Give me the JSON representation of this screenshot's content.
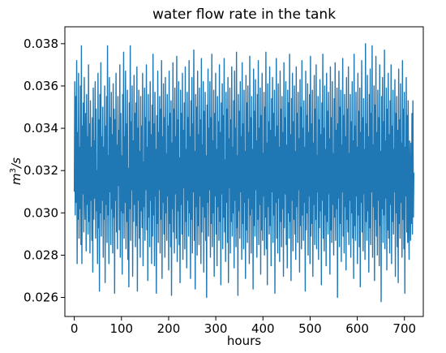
{
  "chart_data": {
    "type": "line",
    "title": "water flow rate in the tank",
    "xlabel": "hours",
    "ylabel_base": "m",
    "ylabel_sup": "3",
    "ylabel_tail": "/s",
    "xlim": [
      -20,
      740
    ],
    "ylim": [
      0.0251,
      0.0388
    ],
    "xticks": [
      0,
      100,
      200,
      300,
      400,
      500,
      600,
      700
    ],
    "xtick_labels": [
      "0",
      "100",
      "200",
      "300",
      "400",
      "500",
      "600",
      "700"
    ],
    "yticks": [
      0.026,
      0.028,
      0.03,
      0.032,
      0.034,
      0.036,
      0.038
    ],
    "ytick_labels": [
      "0.026",
      "0.028",
      "0.030",
      "0.032",
      "0.034",
      "0.036",
      "0.038"
    ],
    "grid": false,
    "legend": "none",
    "line_color": "#1f77b4",
    "series": [
      {
        "values": [
          0.031,
          0.0362,
          0.0299,
          0.0355,
          0.0305,
          0.0372,
          0.0276,
          0.0338,
          0.0297,
          0.0366,
          0.0288,
          0.0331,
          0.0302,
          0.036,
          0.0285,
          0.0379,
          0.0276,
          0.0341,
          0.0309,
          0.0352,
          0.0291,
          0.0364,
          0.0318,
          0.0297,
          0.0347,
          0.0282,
          0.0356,
          0.0304,
          0.0336,
          0.029,
          0.037,
          0.0296,
          0.0342,
          0.0281,
          0.0353,
          0.0306,
          0.0331,
          0.0287,
          0.0345,
          0.0272,
          0.0359,
          0.0297,
          0.0334,
          0.0307,
          0.0362,
          0.0288,
          0.0349,
          0.0301,
          0.032,
          0.0276,
          0.0366,
          0.0293,
          0.0344,
          0.0263,
          0.0356,
          0.03,
          0.0371,
          0.0289,
          0.0336,
          0.0306,
          0.035,
          0.0279,
          0.0331,
          0.0297,
          0.036,
          0.0267,
          0.0341,
          0.0304,
          0.0355,
          0.0286,
          0.0379,
          0.0299,
          0.0327,
          0.0276,
          0.0364,
          0.031,
          0.0345,
          0.0285,
          0.0357,
          0.0302,
          0.0337,
          0.0281,
          0.0361,
          0.0298,
          0.0349,
          0.0262,
          0.0344,
          0.0306,
          0.0366,
          0.0291,
          0.0332,
          0.0283,
          0.0355,
          0.0313,
          0.0339,
          0.0292,
          0.037,
          0.0279,
          0.0347,
          0.0301,
          0.0327,
          0.0271,
          0.0356,
          0.03,
          0.0376,
          0.0288,
          0.0336,
          0.0305,
          0.0367,
          0.0283,
          0.0342,
          0.0296,
          0.0358,
          0.0278,
          0.0321,
          0.0265,
          0.0352,
          0.0302,
          0.0379,
          0.0287,
          0.0343,
          0.0311,
          0.036,
          0.027,
          0.0334,
          0.0296,
          0.0365,
          0.0304,
          0.0347,
          0.0284,
          0.0352,
          0.0294,
          0.0369,
          0.0263,
          0.034,
          0.0306,
          0.0358,
          0.0288,
          0.0329,
          0.0279,
          0.0355,
          0.0301,
          0.0341,
          0.0293,
          0.0366,
          0.0275,
          0.0324,
          0.0303,
          0.0359,
          0.0287,
          0.0345,
          0.0311,
          0.037,
          0.0292,
          0.0331,
          0.0268,
          0.0356,
          0.0298,
          0.0343,
          0.0284,
          0.0362,
          0.0306,
          0.0337,
          0.0276,
          0.0351,
          0.0289,
          0.0375,
          0.0299,
          0.0342,
          0.0275,
          0.0357,
          0.0308,
          0.033,
          0.0262,
          0.0346,
          0.0295,
          0.0367,
          0.0286,
          0.0338,
          0.0311,
          0.0355,
          0.0281,
          0.0349,
          0.0297,
          0.0372,
          0.0269,
          0.0336,
          0.0305,
          0.0361,
          0.029,
          0.0345,
          0.0279,
          0.0364,
          0.03,
          0.0328,
          0.0287,
          0.0356,
          0.0308,
          0.0341,
          0.0273,
          0.0367,
          0.0295,
          0.0347,
          0.0284,
          0.0353,
          0.0261,
          0.0333,
          0.0302,
          0.0371,
          0.0291,
          0.0349,
          0.0281,
          0.0359,
          0.0309,
          0.0336,
          0.0288,
          0.0374,
          0.0277,
          0.0344,
          0.0301,
          0.0362,
          0.0285,
          0.0326,
          0.0267,
          0.0358,
          0.0304,
          0.0347,
          0.029,
          0.0366,
          0.0278,
          0.0339,
          0.0312,
          0.0352,
          0.0283,
          0.0369,
          0.0296,
          0.033,
          0.0274,
          0.0357,
          0.0306,
          0.0345,
          0.0289,
          0.0372,
          0.03,
          0.0336,
          0.0269,
          0.0353,
          0.0297,
          0.0364,
          0.0281,
          0.0342,
          0.031,
          0.0377,
          0.0287,
          0.0329,
          0.0264,
          0.0356,
          0.0303,
          0.035,
          0.028,
          0.0367,
          0.0294,
          0.0337,
          0.0285,
          0.0359,
          0.0308,
          0.0344,
          0.0276,
          0.0373,
          0.0291,
          0.0332,
          0.0303,
          0.0362,
          0.0272,
          0.0348,
          0.0298,
          0.0357,
          0.0287,
          0.0327,
          0.026,
          0.0351,
          0.0305,
          0.0368,
          0.0289,
          0.034,
          0.0311,
          0.0362,
          0.0279,
          0.0345,
          0.0295,
          0.0375,
          0.0284,
          0.0334,
          0.03,
          0.0358,
          0.027,
          0.0347,
          0.0308,
          0.0366,
          0.029,
          0.033,
          0.0275,
          0.0355,
          0.0303,
          0.0343,
          0.0287,
          0.037,
          0.0296,
          0.0338,
          0.0266,
          0.0352,
          0.0309,
          0.0361,
          0.0283,
          0.0346,
          0.0298,
          0.0373,
          0.0291,
          0.0325,
          0.0277,
          0.0357,
          0.0305,
          0.0349,
          0.0286,
          0.0364,
          0.0267,
          0.0335,
          0.0312,
          0.0359,
          0.0281,
          0.0344,
          0.0296,
          0.0369,
          0.0289,
          0.0331,
          0.03,
          0.0353,
          0.0274,
          0.0367,
          0.0306,
          0.034,
          0.0284,
          0.0376,
          0.0293,
          0.0327,
          0.0261,
          0.0356,
          0.0301,
          0.0348,
          0.0288,
          0.0362,
          0.031,
          0.0336,
          0.0278,
          0.0371,
          0.0295,
          0.0342,
          0.0283,
          0.0358,
          0.0305,
          0.0329,
          0.0269,
          0.0365,
          0.0292,
          0.0352,
          0.0286,
          0.036,
          0.0307,
          0.0338,
          0.0276,
          0.0374,
          0.0299,
          0.0345,
          0.0281,
          0.0355,
          0.0302,
          0.033,
          0.0264,
          0.0368,
          0.0294,
          0.0348,
          0.0289,
          0.0363,
          0.0311,
          0.0334,
          0.0279,
          0.0356,
          0.0297,
          0.0372,
          0.0285,
          0.034,
          0.0304,
          0.0359,
          0.0271,
          0.0346,
          0.0292,
          0.0366,
          0.0287,
          0.0328,
          0.0308,
          0.0357,
          0.028,
          0.035,
          0.0298,
          0.0376,
          0.0283,
          0.0333,
          0.0266,
          0.0361,
          0.0303,
          0.0343,
          0.029,
          0.0369,
          0.0294,
          0.0339,
          0.0275,
          0.0354,
          0.031,
          0.0364,
          0.0286,
          0.0347,
          0.0299,
          0.0358,
          0.0262,
          0.0336,
          0.0305,
          0.0373,
          0.0288,
          0.0341,
          0.0281,
          0.0361,
          0.0307,
          0.0331,
          0.0277,
          0.0367,
          0.0296,
          0.0349,
          0.0284,
          0.0355,
          0.0302,
          0.0338,
          0.027,
          0.0371,
          0.0293,
          0.0345,
          0.0309,
          0.0362,
          0.0285,
          0.0332,
          0.0274,
          0.0358,
          0.03,
          0.0352,
          0.0288,
          0.0375,
          0.0296,
          0.0337,
          0.0268,
          0.0354,
          0.0306,
          0.0366,
          0.0282,
          0.0343,
          0.0297,
          0.036,
          0.029,
          0.0329,
          0.0278,
          0.0369,
          0.0303,
          0.0347,
          0.0286,
          0.0357,
          0.0311,
          0.0335,
          0.0272,
          0.0363,
          0.0294,
          0.035,
          0.0283,
          0.0372,
          0.0299,
          0.034,
          0.0287,
          0.0353,
          0.0305,
          0.0331,
          0.0263,
          0.0367,
          0.0292,
          0.0346,
          0.03,
          0.0361,
          0.028,
          0.0338,
          0.0308,
          0.0356,
          0.0276,
          0.0374,
          0.0289,
          0.0342,
          0.0295,
          0.0358,
          0.027,
          0.0333,
          0.0304,
          0.0365,
          0.0285,
          0.0349,
          0.0297,
          0.037,
          0.0283,
          0.0327,
          0.031,
          0.0355,
          0.0278,
          0.0344,
          0.0293,
          0.0363,
          0.0301,
          0.0337,
          0.0266,
          0.0352,
          0.0306,
          0.0375,
          0.0288,
          0.034,
          0.0282,
          0.036,
          0.0299,
          0.033,
          0.0275,
          0.0366,
          0.0296,
          0.0348,
          0.029,
          0.0357,
          0.0309,
          0.0335,
          0.0271,
          0.0369,
          0.0292,
          0.0345,
          0.0286,
          0.0362,
          0.0304,
          0.0328,
          0.028,
          0.0354,
          0.0298,
          0.0371,
          0.0287,
          0.0339,
          0.0302,
          0.0359,
          0.026,
          0.0342,
          0.0307,
          0.0367,
          0.0284,
          0.035,
          0.0295,
          0.0358,
          0.0277,
          0.0332,
          0.031,
          0.0373,
          0.0289,
          0.0346,
          0.0281,
          0.0356,
          0.0303,
          0.0336,
          0.0273,
          0.0364,
          0.0297,
          0.0349,
          0.0291,
          0.0369,
          0.0285,
          0.0328,
          0.0306,
          0.0356,
          0.0279,
          0.0343,
          0.03,
          0.0362,
          0.0288,
          0.0334,
          0.0269,
          0.0375,
          0.0294,
          0.0341,
          0.0287,
          0.0357,
          0.0308,
          0.0331,
          0.0276,
          0.0366,
          0.0299,
          0.0348,
          0.0284,
          0.0359,
          0.0265,
          0.0338,
          0.0305,
          0.0372,
          0.0291,
          0.0345,
          0.0282,
          0.0354,
          0.0309,
          0.033,
          0.0278,
          0.038,
          0.0296,
          0.0342,
          0.0287,
          0.0365,
          0.0301,
          0.0336,
          0.0272,
          0.0356,
          0.0293,
          0.0368,
          0.0285,
          0.0347,
          0.031,
          0.0379,
          0.0279,
          0.0332,
          0.0303,
          0.036,
          0.0268,
          0.0351,
          0.0297,
          0.0374,
          0.0289,
          0.0338,
          0.028,
          0.0358,
          0.0306,
          0.0345,
          0.0275,
          0.037,
          0.0294,
          0.0329,
          0.0258,
          0.0355,
          0.0302,
          0.0364,
          0.0286,
          0.0343,
          0.0299,
          0.0377,
          0.0283,
          0.0334,
          0.0307,
          0.0359,
          0.0273,
          0.0349,
          0.0292,
          0.0366,
          0.0288,
          0.0337,
          0.0281,
          0.0353,
          0.0304,
          0.037,
          0.0276,
          0.0341,
          0.0296,
          0.0358,
          0.029,
          0.033,
          0.031,
          0.0363,
          0.027,
          0.0347,
          0.03,
          0.0355,
          0.0284,
          0.0339,
          0.0267,
          0.0368,
          0.0295,
          0.0344,
          0.0288,
          0.0361,
          0.0305,
          0.0333,
          0.0279,
          0.0372,
          0.0297,
          0.0349,
          0.0283,
          0.0357,
          0.0262,
          0.0331,
          0.0308,
          0.0364,
          0.0291,
          0.0346,
          0.0286,
          0.0353,
          0.0302,
          0.0278,
          0.0334,
          0.0319,
          0.0287,
          0.0333,
          0.0295,
          0.0347,
          0.029,
          0.0353,
          0.0298,
          0.0319
        ]
      }
    ]
  }
}
